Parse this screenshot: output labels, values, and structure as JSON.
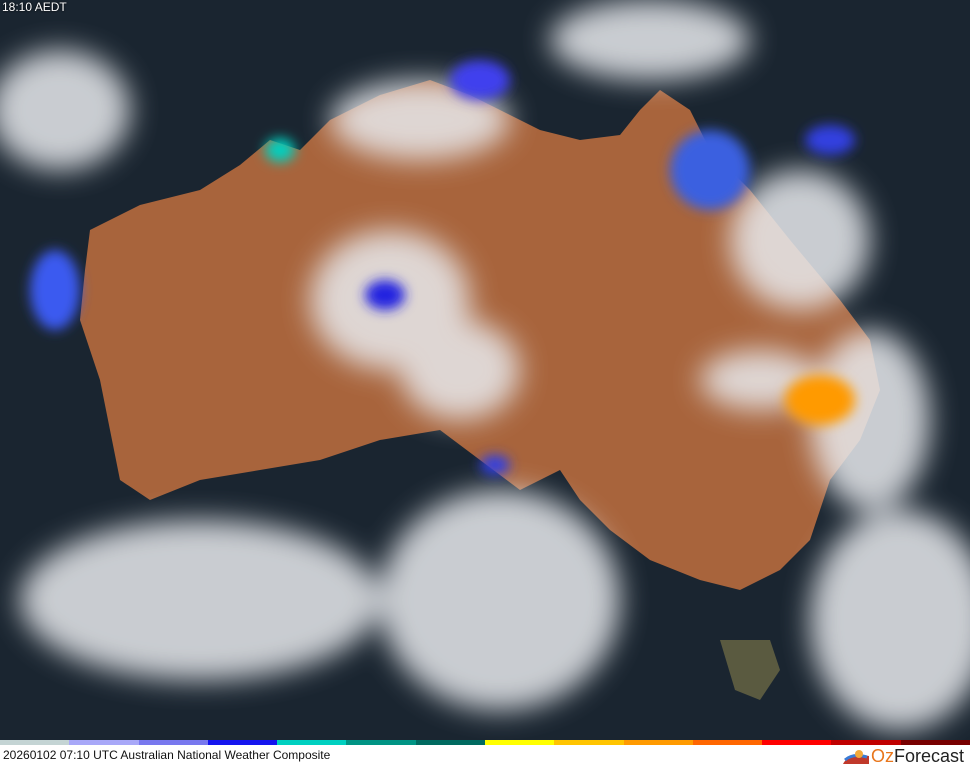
{
  "header": {
    "local_time": "18:10 AEDT"
  },
  "footer": {
    "caption": "20260102 07:10 UTC Australian National Weather Composite"
  },
  "logo": {
    "part1": "Oz",
    "part2": "Forecast"
  },
  "legend": {
    "colors": [
      "#c4d4d4",
      "#a8a8f8",
      "#7878ee",
      "#1414ee",
      "#00d0c0",
      "#009484",
      "#006a60",
      "#ffff00",
      "#ffc400",
      "#ff9a00",
      "#ff6600",
      "#ff0000",
      "#c00000",
      "#780000"
    ]
  },
  "map": {
    "ocean": "#1a2530",
    "land": "#a8643c"
  }
}
